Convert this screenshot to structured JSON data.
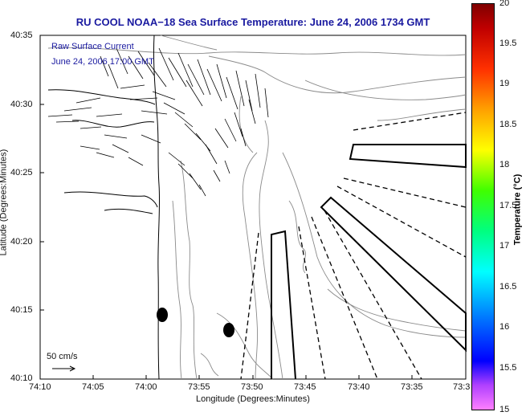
{
  "title": "RU COOL  NOAA−18  Sea Surface Temperature:  June 24, 2006 1734 GMT",
  "current": {
    "label": "Raw Surface Current",
    "time": "June 24, 2006 17:00 GMT"
  },
  "axes": {
    "xlabel": "Longitude (Degrees:Minutes)",
    "ylabel": "Latitude (Degrees:Minutes)",
    "x_ticks": [
      "74:10",
      "74:05",
      "74:00",
      "73:55",
      "73:50",
      "73:45",
      "73:40",
      "73:35",
      "73:3"
    ],
    "y_ticks": [
      "40:35",
      "40:30",
      "40:25",
      "40:20",
      "40:15",
      "40:10"
    ]
  },
  "scale": {
    "label": "50 cm/s"
  },
  "colorbar": {
    "label": "Temperature (°C)",
    "ticks": [
      "20",
      "19.5",
      "19",
      "18.5",
      "18",
      "17.5",
      "17",
      "16.5",
      "16",
      "15.5",
      "15"
    ],
    "min": 15,
    "max": 20
  },
  "colors": {
    "title": "#1a1aa0",
    "coast": "#000000",
    "contour": "#8a8a8a"
  }
}
